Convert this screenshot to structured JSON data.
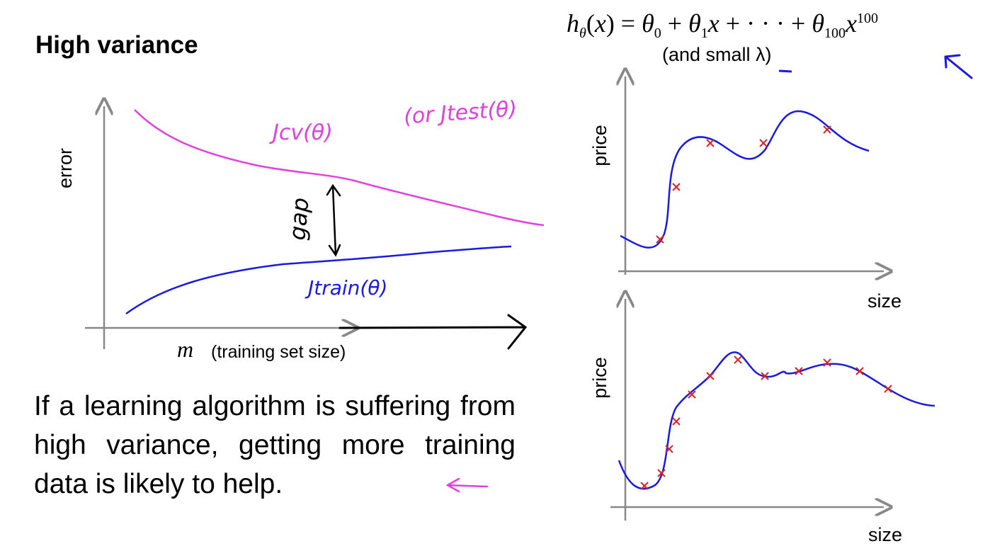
{
  "title": "High variance",
  "formula": {
    "text": "hθ(x) = θ0 + θ1x + ··· + θ100x^100",
    "note": "(and small λ)"
  },
  "learning_curve": {
    "y_label": "error",
    "x_symbol": "m",
    "x_label": "(training set size)",
    "cv_label": "Jcv(θ)",
    "test_label": "(or Jtest(θ)",
    "train_label": "Jtrain(θ)",
    "gap_label": "gap",
    "colors": {
      "cv": "#e040e0",
      "train": "#1a1ae0",
      "gap": "#000000"
    }
  },
  "fit_plots": [
    {
      "y_label": "price",
      "x_label": "size"
    },
    {
      "y_label": "price",
      "x_label": "size"
    }
  ],
  "conclusion": "If a learning algorithm is suffering from high variance, getting more training data is likely to help.",
  "colors": {
    "curve": "#1a1ae0",
    "points": "#e02020",
    "axes": "#888888",
    "annotation_magenta": "#e040e0"
  }
}
